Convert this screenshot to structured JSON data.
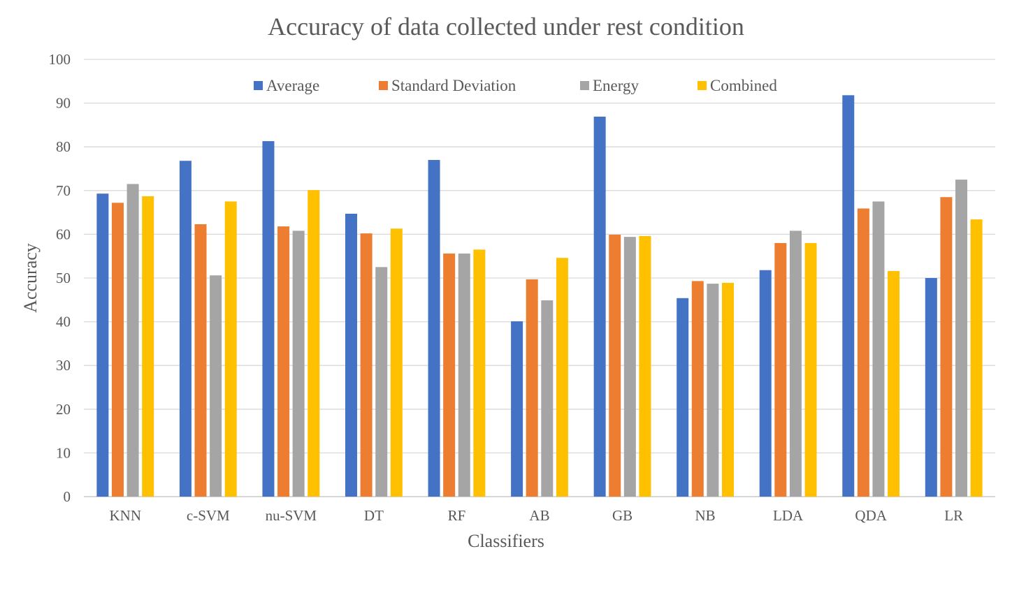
{
  "chart_data": {
    "type": "bar",
    "title": "Accuracy of data collected under rest condition",
    "xlabel": "Classifiers",
    "ylabel": "Accuracy",
    "ylim": [
      0,
      100
    ],
    "yticks": [
      0,
      10,
      20,
      30,
      40,
      50,
      60,
      70,
      80,
      90,
      100
    ],
    "grid": true,
    "legend_position": "top",
    "categories": [
      "KNN",
      "c-SVM",
      "nu-SVM",
      "DT",
      "RF",
      "AB",
      "GB",
      "NB",
      "LDA",
      "QDA",
      "LR"
    ],
    "series": [
      {
        "name": "Average",
        "color": "#4472C4",
        "values": [
          69.3,
          76.8,
          81.3,
          64.7,
          77.0,
          40.1,
          86.9,
          45.4,
          51.8,
          91.8,
          50.0
        ]
      },
      {
        "name": "Standard Deviation",
        "color": "#ED7D31",
        "values": [
          67.2,
          62.3,
          61.8,
          60.2,
          55.6,
          49.7,
          59.9,
          49.3,
          58.0,
          65.9,
          68.5
        ]
      },
      {
        "name": "Energy",
        "color": "#A5A5A5",
        "values": [
          71.5,
          50.6,
          60.8,
          52.5,
          55.6,
          44.9,
          59.4,
          48.7,
          60.8,
          67.5,
          72.5
        ]
      },
      {
        "name": "Combined",
        "color": "#FFC000",
        "values": [
          68.7,
          67.5,
          70.1,
          61.3,
          56.5,
          54.6,
          59.6,
          48.9,
          58.0,
          51.6,
          63.4
        ]
      }
    ]
  }
}
